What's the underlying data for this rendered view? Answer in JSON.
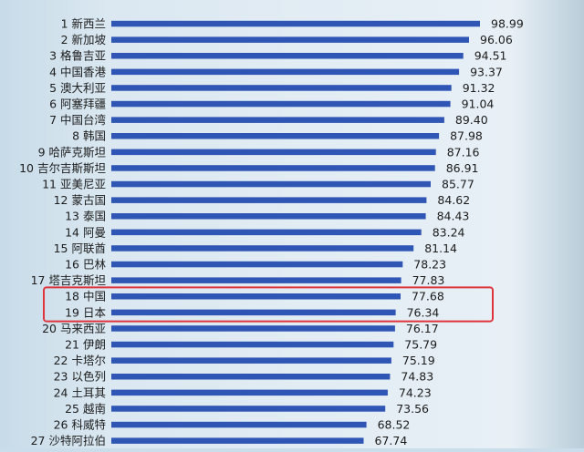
{
  "chart_data": {
    "type": "bar",
    "orientation": "horizontal",
    "title": "",
    "xlabel": "",
    "ylabel": "",
    "xlim": [
      0,
      100
    ],
    "bar_color": "#2f56b4",
    "highlight_color": "#e0343c",
    "highlight_categories": [
      "18 中国",
      "19 日本"
    ],
    "categories": [
      "1 新西兰",
      "2 新加坡",
      "3 格鲁吉亚",
      "4 中国香港",
      "5 澳大利亚",
      "6 阿塞拜疆",
      "7 中国台湾",
      "8 韩国",
      "9 哈萨克斯坦",
      "10 吉尔吉斯斯坦",
      "11 亚美尼亚",
      "12 蒙古国",
      "13 泰国",
      "14 阿曼",
      "15 阿联酋",
      "16 巴林",
      "17 塔吉克斯坦",
      "18 中国",
      "19 日本",
      "20 马来西亚",
      "21 伊朗",
      "22 卡塔尔",
      "23 以色列",
      "24 土耳其",
      "25 越南",
      "26 科威特",
      "27 沙特阿拉伯"
    ],
    "values": [
      98.99,
      96.06,
      94.51,
      93.37,
      91.32,
      91.04,
      89.4,
      87.98,
      87.16,
      86.91,
      85.77,
      84.62,
      84.43,
      83.24,
      81.14,
      78.23,
      77.83,
      77.68,
      76.34,
      76.17,
      75.79,
      75.19,
      74.83,
      74.23,
      73.56,
      68.52,
      67.74
    ],
    "value_labels": [
      "98.99",
      "96.06",
      "94.51",
      "93.37",
      "91.32",
      "91.04",
      "89.40",
      "87.98",
      "87.16",
      "86.91",
      "85.77",
      "84.62",
      "84.43",
      "83.24",
      "81.14",
      "78.23",
      "77.83",
      "77.68",
      "76.34",
      "76.17",
      "75.79",
      "75.19",
      "74.83",
      "74.23",
      "73.56",
      "68.52",
      "67.74"
    ]
  }
}
